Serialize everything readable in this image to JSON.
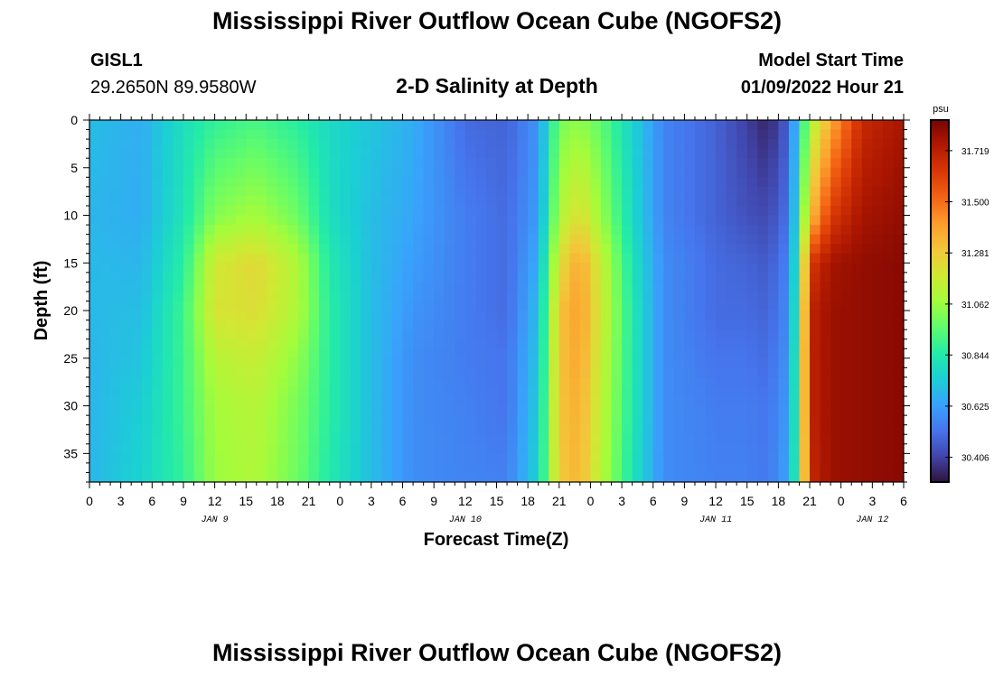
{
  "header": {
    "title": "Mississippi River Outflow Ocean Cube (NGOFS2)",
    "station_name": "GISL1",
    "station_coords": "29.2650N  89.9580W",
    "subtitle": "2-D Salinity at Depth",
    "model_start_label": "Model Start Time",
    "model_start_value": "01/09/2022 Hour 21"
  },
  "footer": {
    "title": "Mississippi River Outflow Ocean Cube (NGOFS2)"
  },
  "chart_data": {
    "type": "heatmap",
    "title": "2-D Salinity at Depth",
    "xlabel": "Forecast Time(Z)",
    "ylabel": "Depth (ft)",
    "x_tick_labels": [
      "0",
      "3",
      "6",
      "9",
      "12",
      "15",
      "18",
      "21",
      "0",
      "3",
      "6",
      "9",
      "12",
      "15",
      "18",
      "21",
      "0",
      "3",
      "6",
      "9",
      "12",
      "15",
      "18",
      "21",
      "0",
      "3",
      "6"
    ],
    "x_date_labels": [
      {
        "label": "JAN 9",
        "hour_index": 12
      },
      {
        "label": "JAN 10",
        "hour_index": 36
      },
      {
        "label": "JAN 11",
        "hour_index": 60
      },
      {
        "label": "JAN 12",
        "hour_index": 75
      }
    ],
    "x_range_hours": [
      0,
      78
    ],
    "y_ticks": [
      0,
      5,
      10,
      15,
      20,
      25,
      30,
      35
    ],
    "y_range_ft": [
      0,
      38
    ],
    "colorbar": {
      "unit": "psu",
      "tick_values": [
        30.406,
        30.625,
        30.844,
        31.062,
        31.281,
        31.5,
        31.719
      ],
      "tick_labels": [
        "30.406",
        "30.625",
        "30.844",
        "31.062",
        "31.281",
        "31.500",
        "31.719"
      ],
      "range": [
        30.3,
        31.85
      ],
      "colors": [
        "#30123b",
        "#4145ab",
        "#4675ed",
        "#39a2fc",
        "#1bcfd4",
        "#24eca6",
        "#61fc6c",
        "#a4fc3b",
        "#d1e834",
        "#f3c63a",
        "#fe9b2d",
        "#f36315",
        "#d93806",
        "#b11901",
        "#7a0402"
      ]
    },
    "depth_profile_ft": [
      0,
      10,
      15,
      20,
      25,
      30,
      38
    ],
    "salinity_columns": [
      {
        "hour": 0,
        "values": [
          30.7,
          30.68,
          30.69,
          30.69,
          30.68,
          30.68,
          30.68
        ]
      },
      {
        "hour": 5,
        "values": [
          30.66,
          30.66,
          30.68,
          30.7,
          30.72,
          30.74,
          30.76
        ]
      },
      {
        "hour": 9,
        "values": [
          30.8,
          30.82,
          30.86,
          30.9,
          30.9,
          30.9,
          30.88
        ]
      },
      {
        "hour": 12,
        "values": [
          30.88,
          31.02,
          31.18,
          31.2,
          31.12,
          31.08,
          31.06
        ]
      },
      {
        "hour": 16,
        "values": [
          30.92,
          31.08,
          31.24,
          31.22,
          31.16,
          31.12,
          31.1
        ]
      },
      {
        "hour": 20,
        "values": [
          30.86,
          30.98,
          31.1,
          31.1,
          31.04,
          31.0,
          30.98
        ]
      },
      {
        "hour": 23,
        "values": [
          30.78,
          30.8,
          30.84,
          30.86,
          30.86,
          30.86,
          30.84
        ]
      },
      {
        "hour": 27,
        "values": [
          30.72,
          30.7,
          30.7,
          30.7,
          30.7,
          30.7,
          30.7
        ]
      },
      {
        "hour": 31,
        "values": [
          30.66,
          30.64,
          30.62,
          30.6,
          30.58,
          30.58,
          30.58
        ]
      },
      {
        "hour": 36,
        "values": [
          30.5,
          30.54,
          30.54,
          30.54,
          30.54,
          30.55,
          30.56
        ]
      },
      {
        "hour": 40,
        "values": [
          30.48,
          30.5,
          30.5,
          30.5,
          30.52,
          30.52,
          30.55
        ]
      },
      {
        "hour": 43,
        "values": [
          30.6,
          30.62,
          30.66,
          30.7,
          30.72,
          30.74,
          30.76
        ]
      },
      {
        "hour": 45,
        "values": [
          31.0,
          31.1,
          31.22,
          31.3,
          31.3,
          31.3,
          31.28
        ]
      },
      {
        "hour": 47,
        "values": [
          31.04,
          31.22,
          31.38,
          31.4,
          31.38,
          31.36,
          31.34
        ]
      },
      {
        "hour": 49,
        "values": [
          30.96,
          31.06,
          31.16,
          31.18,
          31.16,
          31.14,
          31.12
        ]
      },
      {
        "hour": 52,
        "values": [
          30.76,
          30.78,
          30.82,
          30.84,
          30.84,
          30.84,
          30.82
        ]
      },
      {
        "hour": 55,
        "values": [
          30.56,
          30.56,
          30.58,
          30.58,
          30.58,
          30.58,
          30.58
        ]
      },
      {
        "hour": 60,
        "values": [
          30.48,
          30.48,
          30.5,
          30.5,
          30.52,
          30.54,
          30.55
        ]
      },
      {
        "hour": 63,
        "values": [
          30.4,
          30.44,
          30.48,
          30.5,
          30.52,
          30.54,
          30.55
        ]
      },
      {
        "hour": 65,
        "values": [
          30.34,
          30.42,
          30.46,
          30.48,
          30.5,
          30.52,
          30.53
        ]
      },
      {
        "hour": 67,
        "values": [
          30.48,
          30.52,
          30.56,
          30.58,
          30.6,
          30.62,
          30.64
        ]
      },
      {
        "hour": 68,
        "values": [
          30.78,
          30.86,
          30.92,
          30.94,
          30.96,
          30.96,
          30.96
        ]
      },
      {
        "hour": 69,
        "values": [
          31.08,
          31.3,
          31.62,
          31.7,
          31.7,
          31.7,
          31.68
        ]
      },
      {
        "hour": 71,
        "values": [
          31.36,
          31.62,
          31.76,
          31.78,
          31.78,
          31.78,
          31.78
        ]
      },
      {
        "hour": 74,
        "values": [
          31.68,
          31.76,
          31.8,
          31.8,
          31.8,
          31.8,
          31.8
        ]
      },
      {
        "hour": 78,
        "values": [
          31.76,
          31.8,
          31.82,
          31.82,
          31.82,
          31.82,
          31.82
        ]
      }
    ]
  }
}
